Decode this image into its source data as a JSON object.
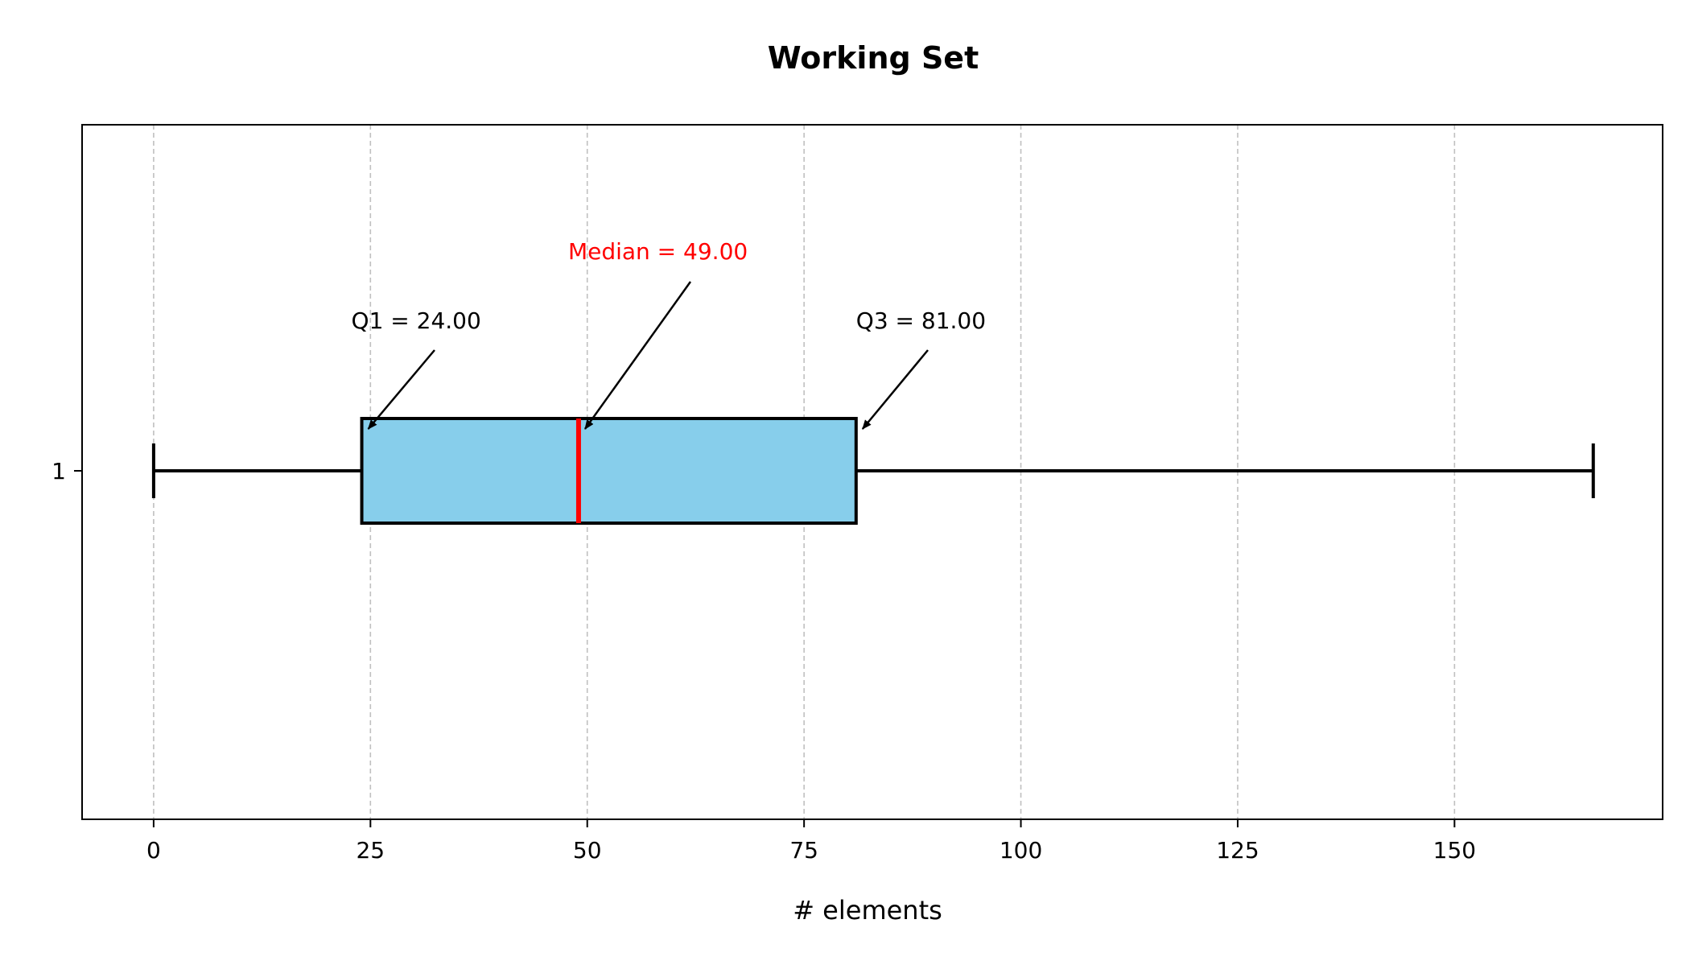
{
  "chart_data": {
    "type": "boxplot",
    "orientation": "horizontal",
    "title": "Working Set",
    "xlabel": "# elements",
    "ylabel": "",
    "xlim": [
      -8.25,
      174
    ],
    "x_ticks": [
      0,
      25,
      50,
      75,
      100,
      125,
      150
    ],
    "y_ticks": [
      "1"
    ],
    "grid": {
      "x": true,
      "y": false,
      "style": "dashed",
      "color": "#c0c0c0"
    },
    "series": [
      {
        "category": "1",
        "whisker_low": 0,
        "q1": 24,
        "median": 49,
        "q3": 81,
        "whisker_high": 166
      }
    ],
    "annotations": [
      {
        "key": "q1",
        "text": "Q1 = 24.00",
        "x": 24,
        "color": "#000000"
      },
      {
        "key": "median",
        "text": "Median = 49.00",
        "x": 49,
        "color": "#ff0000"
      },
      {
        "key": "q3",
        "text": "Q3 = 81.00",
        "x": 81,
        "color": "#000000"
      }
    ],
    "colors": {
      "box_fill": "#87ceeb",
      "box_edge": "#000000",
      "median_line": "#ff0000",
      "whisker": "#000000"
    }
  }
}
